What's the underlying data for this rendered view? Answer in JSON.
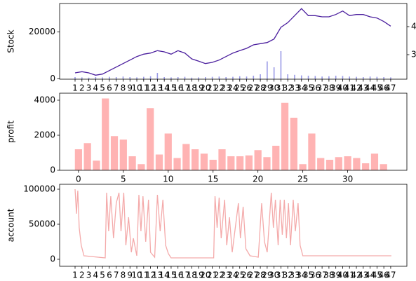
{
  "chart_data": [
    {
      "type": "line",
      "ylabel": "Stock",
      "x": [
        1,
        2,
        3,
        4,
        5,
        6,
        7,
        8,
        9,
        10,
        11,
        12,
        13,
        14,
        15,
        16,
        17,
        18,
        19,
        20,
        21,
        22,
        23,
        24,
        25,
        26,
        27,
        28,
        29,
        30,
        31,
        32,
        33,
        34,
        35,
        36,
        37,
        38,
        39,
        40,
        41,
        42,
        43,
        44,
        45,
        46,
        47
      ],
      "series": [
        {
          "color": "#4b1f9e",
          "values": [
            2500,
            3000,
            2500,
            1500,
            2000,
            3500,
            5000,
            6500,
            8000,
            9500,
            10500,
            11000,
            12000,
            11500,
            10500,
            12000,
            11000,
            8500,
            7500,
            6500,
            7000,
            8000,
            9500,
            11000,
            12000,
            13000,
            14500,
            15000,
            15500,
            17000,
            22000,
            24000,
            27000,
            30000,
            27000,
            27000,
            26500,
            26500,
            27500,
            29000,
            27000,
            27500,
            27500,
            26500,
            26000,
            24500,
            22500
          ]
        },
        {
          "color": "#9a9ae6",
          "axis": "y2",
          "type": "bar",
          "values": [
            2.2,
            2.19,
            2.18,
            2.2,
            2.19,
            2.21,
            2.2,
            2.22,
            2.2,
            2.19,
            2.21,
            2.23,
            2.35,
            2.2,
            2.19,
            2.2,
            2.21,
            2.18,
            2.19,
            2.2,
            2.21,
            2.22,
            2.2,
            2.21,
            2.23,
            2.22,
            2.25,
            2.3,
            2.76,
            2.55,
            3.125,
            2.3,
            2.28,
            2.26,
            2.25,
            2.24,
            2.22,
            2.23,
            2.25,
            2.24,
            2.22,
            2.21,
            2.2,
            2.22,
            2.21,
            2.2,
            2.19
          ]
        }
      ],
      "xlim": [
        -1.25,
        49.36
      ],
      "ylim": [
        -200,
        32200
      ],
      "yticks": [
        0,
        20000
      ],
      "y2lim": [
        2.125,
        4.825
      ],
      "y2ticks": [
        3,
        4
      ],
      "xticks": [
        1,
        2,
        3,
        4,
        5,
        6,
        7,
        8,
        9,
        10,
        11,
        12,
        13,
        14,
        15,
        16,
        17,
        18,
        19,
        20,
        21,
        22,
        23,
        24,
        25,
        26,
        27,
        28,
        29,
        30,
        31,
        32,
        33,
        34,
        35,
        36,
        37,
        38,
        39,
        40,
        41,
        42,
        43,
        44,
        45,
        46,
        47
      ]
    },
    {
      "type": "bar",
      "ylabel": "profit",
      "color": "#ffb3b3",
      "x": [
        0,
        1,
        2,
        3,
        4,
        5,
        6,
        7,
        8,
        9,
        10,
        11,
        12,
        13,
        14,
        15,
        16,
        17,
        18,
        19,
        20,
        21,
        22,
        23,
        24,
        25,
        26,
        27,
        28,
        29,
        30,
        31,
        32,
        33,
        34
      ],
      "values": [
        1200,
        1550,
        550,
        4100,
        1950,
        1750,
        800,
        350,
        3550,
        900,
        2100,
        700,
        1500,
        1200,
        950,
        600,
        1200,
        800,
        800,
        850,
        1150,
        750,
        1400,
        3850,
        3000,
        350,
        2100,
        700,
        600,
        750,
        800,
        700,
        400,
        950,
        350
      ],
      "xlim": [
        -2.1,
        36.6
      ],
      "ylim": [
        0,
        4400
      ],
      "yticks": [
        0,
        2000,
        4000
      ],
      "xticks": [
        0,
        5,
        10,
        15,
        20,
        25,
        30
      ]
    },
    {
      "type": "line",
      "ylabel": "account",
      "x": [
        1,
        1.2,
        1.4,
        1.6,
        1.9,
        2.3,
        5.4,
        5.6,
        5.9,
        6.2,
        6.6,
        7,
        7.4,
        7.7,
        8.1,
        8.4,
        8.8,
        9.2,
        9.5,
        10,
        10.3,
        10.6,
        10.9,
        11.3,
        11.7,
        12,
        12.6,
        13,
        13.4,
        13.8,
        14.2,
        14.6,
        15,
        21.2,
        21.4,
        21.7,
        22,
        22.3,
        22.8,
        23.1,
        23.5,
        23.9,
        24.8,
        25.1,
        25.5,
        25.9,
        26.5,
        27.7,
        28.2,
        28.6,
        29,
        29.6,
        29.9,
        30.2,
        30.6,
        30.9,
        31.2,
        31.5,
        31.8,
        32.1,
        32.4,
        32.8,
        33.1,
        33.5,
        33.8,
        34.2,
        47.1
      ],
      "series": [
        {
          "color": "#f4aaaa",
          "values": [
            100000,
            65000,
            98000,
            45000,
            20000,
            5000,
            2000,
            95000,
            40000,
            90000,
            30000,
            80000,
            95000,
            40000,
            95000,
            20000,
            60000,
            10000,
            30000,
            5000,
            92000,
            40000,
            90000,
            25000,
            85000,
            10000,
            3000,
            92000,
            40000,
            85000,
            20000,
            8000,
            2000,
            2000,
            90000,
            45000,
            88000,
            30000,
            85000,
            20000,
            60000,
            10000,
            80000,
            30000,
            75000,
            15000,
            5000,
            3000,
            80000,
            25000,
            10000,
            95000,
            45000,
            85000,
            20000,
            85000,
            35000,
            85000,
            30000,
            80000,
            20000,
            85000,
            40000,
            80000,
            20000,
            5000,
            5000
          ]
        }
      ],
      "xlim": [
        -1.25,
        49.36
      ],
      "ylim": [
        -10000,
        107000
      ],
      "yticks": [
        0,
        50000,
        100000
      ],
      "xticks": [
        1,
        2,
        3,
        4,
        5,
        6,
        7,
        8,
        9,
        10,
        11,
        12,
        13,
        14,
        15,
        16,
        17,
        18,
        19,
        20,
        21,
        22,
        23,
        24,
        25,
        26,
        27,
        28,
        29,
        30,
        31,
        32,
        33,
        34,
        35,
        36,
        37,
        38,
        39,
        40,
        41,
        42,
        43,
        44,
        45,
        46,
        47
      ]
    }
  ]
}
